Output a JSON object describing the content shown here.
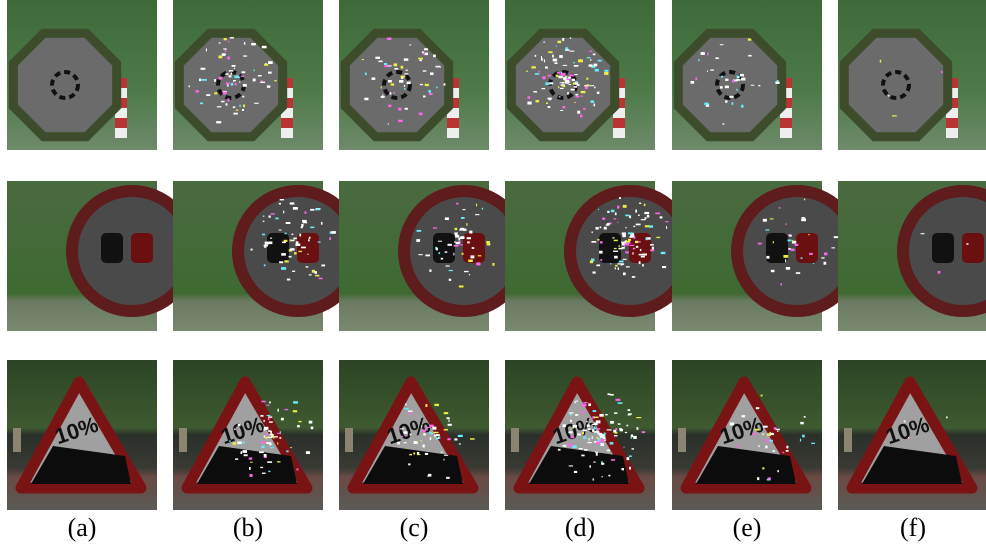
{
  "labels": [
    "(a)",
    "(b)",
    "(c)",
    "(d)",
    "(e)",
    "(f)"
  ],
  "sign_text": "10%"
}
